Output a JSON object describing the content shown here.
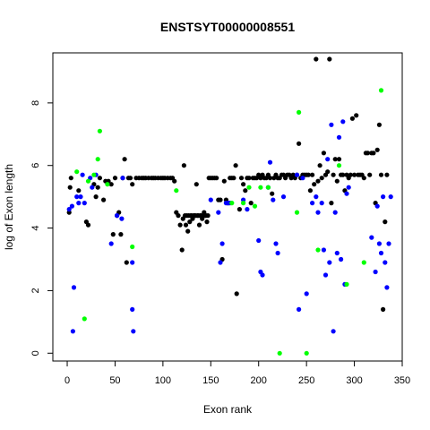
{
  "chart_data": {
    "type": "scatter",
    "title": "ENSTSYT00000008551",
    "xlabel": "Exon rank",
    "ylabel": "log of Exon length",
    "xlim": [
      -15,
      350
    ],
    "ylim": [
      -0.25,
      9.6
    ],
    "x_ticks": [
      0,
      50,
      100,
      150,
      200,
      250,
      300,
      350
    ],
    "y_ticks": [
      0,
      2,
      4,
      6,
      8
    ],
    "colors": {
      "black": "#000000",
      "blue": "#0000ff",
      "green": "#00ff00"
    },
    "series": [
      {
        "color": "black",
        "points": [
          [
            2,
            4.5
          ],
          [
            3,
            5.3
          ],
          [
            4,
            5.6
          ],
          [
            12,
            5.2
          ],
          [
            20,
            4.2
          ],
          [
            22,
            4.1
          ],
          [
            28,
            5.4
          ],
          [
            30,
            5.0
          ],
          [
            32,
            5.3
          ],
          [
            34,
            5.6
          ],
          [
            38,
            4.9
          ],
          [
            40,
            5.5
          ],
          [
            43,
            5.5
          ],
          [
            46,
            5.4
          ],
          [
            48,
            3.8
          ],
          [
            50,
            5.6
          ],
          [
            52,
            4.4
          ],
          [
            54,
            4.5
          ],
          [
            56,
            3.8
          ],
          [
            58,
            5.6
          ],
          [
            60,
            6.2
          ],
          [
            62,
            2.9
          ],
          [
            64,
            5.6
          ],
          [
            66,
            5.6
          ],
          [
            68,
            5.4
          ],
          [
            72,
            5.6
          ],
          [
            75,
            5.6
          ],
          [
            78,
            5.6
          ],
          [
            80,
            5.6
          ],
          [
            82,
            5.6
          ],
          [
            85,
            5.6
          ],
          [
            88,
            5.6
          ],
          [
            90,
            5.6
          ],
          [
            92,
            5.6
          ],
          [
            95,
            5.6
          ],
          [
            98,
            5.6
          ],
          [
            100,
            5.6
          ],
          [
            102,
            5.6
          ],
          [
            105,
            5.6
          ],
          [
            108,
            5.6
          ],
          [
            110,
            5.6
          ],
          [
            112,
            5.5
          ],
          [
            114,
            4.5
          ],
          [
            116,
            4.4
          ],
          [
            118,
            4.1
          ],
          [
            120,
            3.3
          ],
          [
            121,
            4.3
          ],
          [
            122,
            6.0
          ],
          [
            123,
            4.4
          ],
          [
            124,
            4.1
          ],
          [
            125,
            4.4
          ],
          [
            126,
            3.9
          ],
          [
            127,
            4.4
          ],
          [
            128,
            4.2
          ],
          [
            129,
            4.4
          ],
          [
            130,
            4.4
          ],
          [
            131,
            4.3
          ],
          [
            132,
            4.4
          ],
          [
            133,
            4.4
          ],
          [
            134,
            4.4
          ],
          [
            135,
            5.4
          ],
          [
            136,
            4.4
          ],
          [
            137,
            4.4
          ],
          [
            138,
            4.1
          ],
          [
            139,
            4.4
          ],
          [
            140,
            4.4
          ],
          [
            141,
            4.3
          ],
          [
            142,
            4.4
          ],
          [
            143,
            4.5
          ],
          [
            144,
            4.4
          ],
          [
            145,
            4.4
          ],
          [
            146,
            4.2
          ],
          [
            147,
            4.4
          ],
          [
            148,
            5.6
          ],
          [
            150,
            5.6
          ],
          [
            152,
            5.6
          ],
          [
            154,
            5.6
          ],
          [
            156,
            5.6
          ],
          [
            158,
            4.9
          ],
          [
            160,
            4.9
          ],
          [
            162,
            3.0
          ],
          [
            164,
            5.5
          ],
          [
            166,
            4.9
          ],
          [
            168,
            4.8
          ],
          [
            170,
            5.6
          ],
          [
            172,
            5.6
          ],
          [
            174,
            5.6
          ],
          [
            176,
            6.0
          ],
          [
            177,
            1.9
          ],
          [
            180,
            4.6
          ],
          [
            182,
            5.6
          ],
          [
            184,
            5.4
          ],
          [
            186,
            5.2
          ],
          [
            188,
            5.6
          ],
          [
            190,
            5.6
          ],
          [
            192,
            4.8
          ],
          [
            194,
            5.6
          ],
          [
            196,
            5.6
          ],
          [
            198,
            5.6
          ],
          [
            200,
            5.7
          ],
          [
            202,
            5.6
          ],
          [
            204,
            5.7
          ],
          [
            206,
            5.6
          ],
          [
            208,
            5.6
          ],
          [
            210,
            5.7
          ],
          [
            212,
            5.6
          ],
          [
            214,
            5.1
          ],
          [
            216,
            5.6
          ],
          [
            218,
            5.7
          ],
          [
            220,
            5.6
          ],
          [
            222,
            5.6
          ],
          [
            224,
            5.7
          ],
          [
            226,
            5.7
          ],
          [
            228,
            5.6
          ],
          [
            230,
            5.7
          ],
          [
            232,
            5.7
          ],
          [
            234,
            5.6
          ],
          [
            236,
            5.7
          ],
          [
            238,
            5.6
          ],
          [
            240,
            5.7
          ],
          [
            242,
            6.7
          ],
          [
            244,
            5.6
          ],
          [
            246,
            5.7
          ],
          [
            248,
            5.7
          ],
          [
            250,
            5.7
          ],
          [
            252,
            5.7
          ],
          [
            254,
            5.2
          ],
          [
            256,
            5.7
          ],
          [
            258,
            5.4
          ],
          [
            260,
            9.4
          ],
          [
            262,
            5.5
          ],
          [
            264,
            6.0
          ],
          [
            266,
            5.6
          ],
          [
            268,
            6.4
          ],
          [
            270,
            5.7
          ],
          [
            272,
            5.8
          ],
          [
            274,
            9.4
          ],
          [
            276,
            4.8
          ],
          [
            278,
            5.7
          ],
          [
            280,
            6.2
          ],
          [
            282,
            5.5
          ],
          [
            284,
            6.2
          ],
          [
            286,
            5.7
          ],
          [
            288,
            5.7
          ],
          [
            290,
            5.2
          ],
          [
            292,
            5.7
          ],
          [
            294,
            5.6
          ],
          [
            296,
            5.7
          ],
          [
            298,
            7.5
          ],
          [
            300,
            5.7
          ],
          [
            302,
            7.6
          ],
          [
            304,
            5.7
          ],
          [
            306,
            5.7
          ],
          [
            308,
            5.7
          ],
          [
            310,
            5.6
          ],
          [
            312,
            6.4
          ],
          [
            314,
            6.4
          ],
          [
            316,
            5.7
          ],
          [
            318,
            6.4
          ],
          [
            320,
            6.4
          ],
          [
            322,
            4.8
          ],
          [
            324,
            6.5
          ],
          [
            326,
            7.3
          ],
          [
            328,
            5.7
          ],
          [
            330,
            1.4
          ],
          [
            332,
            4.2
          ],
          [
            334,
            5.7
          ]
        ]
      },
      {
        "color": "blue",
        "points": [
          [
            2,
            4.6
          ],
          [
            5,
            4.7
          ],
          [
            6,
            0.7
          ],
          [
            7,
            2.1
          ],
          [
            10,
            5.0
          ],
          [
            12,
            4.8
          ],
          [
            14,
            5.0
          ],
          [
            16,
            5.7
          ],
          [
            18,
            4.8
          ],
          [
            24,
            5.6
          ],
          [
            26,
            5.3
          ],
          [
            30,
            5.7
          ],
          [
            46,
            3.5
          ],
          [
            52,
            4.4
          ],
          [
            57,
            4.3
          ],
          [
            58,
            5.6
          ],
          [
            68,
            1.4
          ],
          [
            68,
            2.9
          ],
          [
            69,
            0.7
          ],
          [
            150,
            4.9
          ],
          [
            158,
            4.5
          ],
          [
            160,
            2.9
          ],
          [
            162,
            3.5
          ],
          [
            166,
            4.8
          ],
          [
            168,
            4.8
          ],
          [
            170,
            4.8
          ],
          [
            184,
            4.9
          ],
          [
            188,
            4.6
          ],
          [
            200,
            3.6
          ],
          [
            202,
            2.6
          ],
          [
            204,
            2.5
          ],
          [
            210,
            5.3
          ],
          [
            212,
            6.1
          ],
          [
            215,
            4.9
          ],
          [
            218,
            3.5
          ],
          [
            220,
            3.2
          ],
          [
            226,
            5.0
          ],
          [
            240,
            5.7
          ],
          [
            242,
            1.4
          ],
          [
            246,
            5.6
          ],
          [
            250,
            1.9
          ],
          [
            256,
            4.8
          ],
          [
            260,
            5.0
          ],
          [
            262,
            4.5
          ],
          [
            266,
            4.8
          ],
          [
            268,
            3.3
          ],
          [
            270,
            2.5
          ],
          [
            272,
            6.2
          ],
          [
            274,
            2.9
          ],
          [
            276,
            7.3
          ],
          [
            278,
            0.7
          ],
          [
            280,
            4.5
          ],
          [
            282,
            3.2
          ],
          [
            284,
            6.9
          ],
          [
            286,
            3.0
          ],
          [
            288,
            7.4
          ],
          [
            290,
            2.2
          ],
          [
            292,
            5.1
          ],
          [
            294,
            5.3
          ],
          [
            318,
            3.7
          ],
          [
            322,
            2.6
          ],
          [
            324,
            4.7
          ],
          [
            326,
            3.5
          ],
          [
            328,
            3.2
          ],
          [
            330,
            5.0
          ],
          [
            332,
            2.9
          ],
          [
            334,
            2.1
          ],
          [
            336,
            3.5
          ],
          [
            338,
            5.0
          ]
        ]
      },
      {
        "color": "green",
        "points": [
          [
            10,
            5.8
          ],
          [
            18,
            1.1
          ],
          [
            22,
            5.5
          ],
          [
            28,
            5.7
          ],
          [
            32,
            6.2
          ],
          [
            34,
            7.1
          ],
          [
            42,
            5.4
          ],
          [
            68,
            3.4
          ],
          [
            114,
            5.2
          ],
          [
            172,
            4.8
          ],
          [
            184,
            4.8
          ],
          [
            190,
            5.3
          ],
          [
            196,
            4.7
          ],
          [
            202,
            5.3
          ],
          [
            210,
            5.3
          ],
          [
            222,
            0.0
          ],
          [
            240,
            4.5
          ],
          [
            242,
            7.7
          ],
          [
            250,
            0.0
          ],
          [
            262,
            3.3
          ],
          [
            284,
            6.0
          ],
          [
            292,
            2.2
          ],
          [
            310,
            2.9
          ],
          [
            328,
            8.4
          ]
        ]
      }
    ]
  }
}
